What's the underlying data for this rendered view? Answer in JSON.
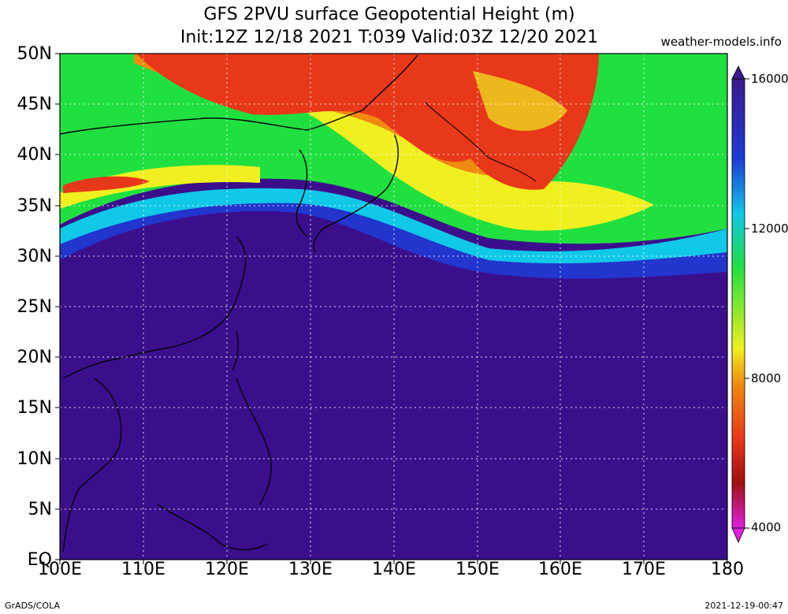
{
  "title_line1": "GFS 2PVU surface Geopotential Height (m)",
  "title_line2": "Init:12Z 12/18 2021 T:039 Valid:03Z 12/20 2021",
  "site": "weather-models.info",
  "footer_left": "GrADS/COLA",
  "footer_right": "2021-12-19-00:47",
  "lat_labels": [
    "50N",
    "45N",
    "40N",
    "35N",
    "30N",
    "25N",
    "20N",
    "15N",
    "10N",
    "5N",
    "EQ"
  ],
  "lon_labels": [
    "100E",
    "110E",
    "120E",
    "130E",
    "140E",
    "150E",
    "160E",
    "170E",
    "180"
  ],
  "colorbar_labels": [
    "16000",
    "12000",
    "8000",
    "4000"
  ],
  "colors": {
    "tropics": "#3b0f8c",
    "blue": "#1e3cd8",
    "cyan": "#10c8e8",
    "green": "#20e040",
    "yellow": "#f0f020",
    "orange": "#f08a10",
    "red": "#e8381a",
    "magenta": "#e020e0"
  }
}
